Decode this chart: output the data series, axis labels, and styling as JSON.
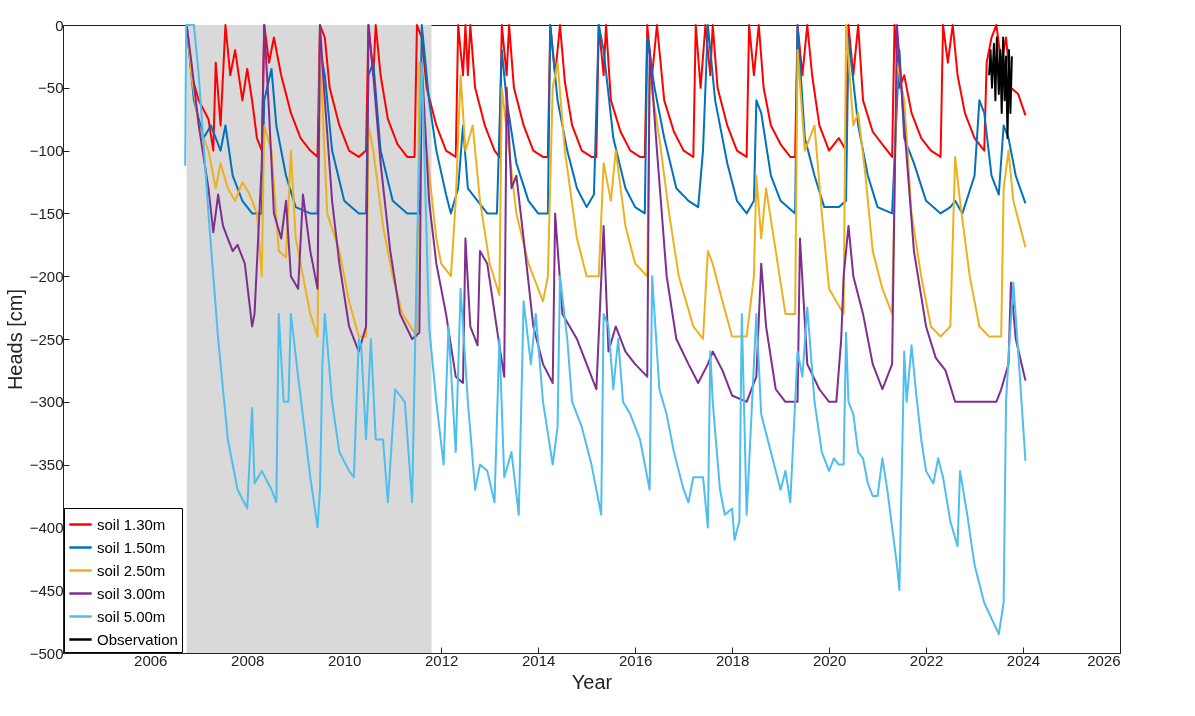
{
  "chart_data": {
    "type": "line",
    "xlabel": "Year",
    "ylabel": "Heads [cm]",
    "xlim": [
      2004.2,
      2026
    ],
    "ylim": [
      -500,
      0
    ],
    "xticks": [
      2006,
      2008,
      2010,
      2012,
      2014,
      2016,
      2018,
      2020,
      2022,
      2024,
      2026
    ],
    "yticks": [
      -500,
      -450,
      -400,
      -350,
      -300,
      -250,
      -200,
      -150,
      -100,
      -50,
      0
    ],
    "grid": false,
    "legend": "bottom left",
    "line_style": "solid",
    "bands": [
      {
        "axis": "x",
        "from": 2006.75,
        "to": 2011.8,
        "color": "#d9d9d9"
      }
    ],
    "series": [
      {
        "name": "soil 1.30m",
        "color": "#ff0000",
        "x": [
          2006.75,
          2006.85,
          2007.0,
          2007.2,
          2007.3,
          2007.35,
          2007.45,
          2007.55,
          2007.65,
          2007.75,
          2007.9,
          2008.0,
          2008.1,
          2008.2,
          2008.3,
          2008.35,
          2008.45,
          2008.55,
          2008.7,
          2008.9,
          2009.1,
          2009.3,
          2009.45,
          2009.5,
          2009.6,
          2009.7,
          2009.9,
          2010.1,
          2010.3,
          2010.45,
          2010.5,
          2010.6,
          2010.65,
          2010.75,
          2010.9,
          2011.1,
          2011.3,
          2011.45,
          2011.5,
          2011.6,
          2011.7,
          2011.9,
          2012.1,
          2012.3,
          2012.35,
          2012.45,
          2012.5,
          2012.55,
          2012.6,
          2012.7,
          2012.9,
          2013.1,
          2013.2,
          2013.25,
          2013.35,
          2013.4,
          2013.5,
          2013.7,
          2013.9,
          2014.1,
          2014.2,
          2014.25,
          2014.35,
          2014.45,
          2014.55,
          2014.7,
          2014.9,
          2015.1,
          2015.2,
          2015.25,
          2015.35,
          2015.4,
          2015.5,
          2015.7,
          2015.9,
          2016.1,
          2016.2,
          2016.25,
          2016.35,
          2016.45,
          2016.6,
          2016.8,
          2017.0,
          2017.2,
          2017.25,
          2017.35,
          2017.45,
          2017.55,
          2017.6,
          2017.7,
          2017.9,
          2018.1,
          2018.3,
          2018.35,
          2018.45,
          2018.55,
          2018.65,
          2018.8,
          2019.0,
          2019.2,
          2019.3,
          2019.35,
          2019.45,
          2019.55,
          2019.65,
          2019.8,
          2020.0,
          2020.2,
          2020.35,
          2020.4,
          2020.5,
          2020.6,
          2020.7,
          2020.9,
          2021.1,
          2021.3,
          2021.35,
          2021.45,
          2021.55,
          2021.7,
          2021.9,
          2022.1,
          2022.3,
          2022.35,
          2022.45,
          2022.55,
          2022.65,
          2022.8,
          2023.0,
          2023.2,
          2023.25,
          2023.35,
          2023.45,
          2023.55,
          2023.65,
          2023.75,
          2023.9,
          2024.05
        ],
        "values": [
          0,
          -40,
          -60,
          -75,
          -100,
          -30,
          -80,
          0,
          -40,
          -20,
          -60,
          -35,
          -60,
          -90,
          -100,
          0,
          -30,
          -10,
          -40,
          -70,
          -90,
          -100,
          -105,
          0,
          -10,
          -50,
          -80,
          -100,
          -105,
          -100,
          0,
          -40,
          0,
          -40,
          -75,
          -95,
          -105,
          -105,
          0,
          -10,
          -50,
          -80,
          -100,
          -105,
          0,
          -40,
          0,
          -40,
          0,
          -50,
          -80,
          -100,
          -105,
          0,
          -40,
          0,
          -50,
          -80,
          -100,
          -105,
          -105,
          0,
          -40,
          0,
          -45,
          -80,
          -100,
          -105,
          -105,
          0,
          -40,
          0,
          -60,
          -85,
          -100,
          -105,
          -105,
          0,
          -40,
          0,
          -60,
          -85,
          -100,
          -105,
          0,
          -50,
          0,
          -40,
          0,
          -50,
          -80,
          -100,
          -105,
          0,
          -40,
          0,
          -50,
          -80,
          -95,
          -105,
          -105,
          0,
          -40,
          0,
          -40,
          -80,
          -100,
          -90,
          -100,
          0,
          -40,
          0,
          -60,
          -85,
          -95,
          -105,
          0,
          -50,
          -40,
          -70,
          -90,
          -100,
          -105,
          0,
          -30,
          0,
          -40,
          -70,
          -90,
          -100,
          -30,
          -10,
          0,
          -30,
          -10,
          -50,
          -55,
          -72
        ]
      },
      {
        "name": "soil 1.50m",
        "color": "#0072bd",
        "x": [
          2006.75,
          2006.9,
          2007.1,
          2007.25,
          2007.45,
          2007.55,
          2007.7,
          2007.9,
          2008.1,
          2008.3,
          2008.35,
          2008.5,
          2008.6,
          2008.8,
          2009.0,
          2009.3,
          2009.45,
          2009.5,
          2009.6,
          2009.75,
          2010.0,
          2010.3,
          2010.45,
          2010.5,
          2010.6,
          2010.75,
          2011.0,
          2011.3,
          2011.55,
          2011.6,
          2011.75,
          2011.9,
          2012.1,
          2012.2,
          2012.35,
          2012.45,
          2012.55,
          2012.75,
          2012.95,
          2013.15,
          2013.25,
          2013.35,
          2013.55,
          2013.8,
          2014.0,
          2014.2,
          2014.25,
          2014.4,
          2014.6,
          2014.8,
          2015.0,
          2015.15,
          2015.25,
          2015.35,
          2015.55,
          2015.8,
          2016.0,
          2016.2,
          2016.25,
          2016.4,
          2016.6,
          2016.85,
          2017.1,
          2017.3,
          2017.4,
          2017.5,
          2017.65,
          2017.9,
          2018.1,
          2018.3,
          2018.45,
          2018.5,
          2018.6,
          2018.8,
          2019.0,
          2019.3,
          2019.35,
          2019.5,
          2019.7,
          2019.9,
          2020.2,
          2020.35,
          2020.4,
          2020.6,
          2020.8,
          2021.0,
          2021.3,
          2021.45,
          2021.55,
          2021.75,
          2022.0,
          2022.3,
          2022.5,
          2022.6,
          2022.75,
          2023.0,
          2023.1,
          2023.2,
          2023.35,
          2023.5,
          2023.6,
          2023.7,
          2023.85,
          2024.05
        ],
        "values": [
          0,
          -60,
          -90,
          -80,
          -100,
          -80,
          -120,
          -140,
          -150,
          -150,
          -60,
          -35,
          -80,
          -120,
          -145,
          -150,
          -150,
          -20,
          -40,
          -100,
          -140,
          -150,
          -150,
          -40,
          -30,
          -100,
          -140,
          -150,
          -150,
          0,
          -60,
          -100,
          -135,
          -150,
          -130,
          -80,
          -130,
          -140,
          -150,
          -150,
          -20,
          -60,
          -110,
          -140,
          -150,
          -150,
          0,
          -60,
          -100,
          -130,
          -145,
          -135,
          0,
          -20,
          -90,
          -130,
          -145,
          -150,
          -10,
          -50,
          -90,
          -130,
          -140,
          -145,
          -100,
          0,
          -60,
          -110,
          -140,
          -150,
          -140,
          -60,
          -70,
          -120,
          -140,
          -150,
          0,
          -90,
          -120,
          -145,
          -145,
          -140,
          -10,
          -80,
          -120,
          -145,
          -150,
          -20,
          -90,
          -110,
          -140,
          -150,
          -145,
          -140,
          -150,
          -120,
          -60,
          -70,
          -120,
          -135,
          -80,
          -90,
          -120,
          -142
        ]
      },
      {
        "name": "soil 2.50m",
        "color": "#edb120",
        "x": [
          2006.75,
          2006.85,
          2007.0,
          2007.2,
          2007.35,
          2007.45,
          2007.6,
          2007.75,
          2007.9,
          2008.05,
          2008.2,
          2008.3,
          2008.35,
          2008.5,
          2008.65,
          2008.8,
          2008.9,
          2009.0,
          2009.15,
          2009.3,
          2009.45,
          2009.5,
          2009.65,
          2009.9,
          2010.1,
          2010.3,
          2010.45,
          2010.5,
          2010.6,
          2010.8,
          2011.0,
          2011.2,
          2011.5,
          2011.55,
          2011.7,
          2011.9,
          2012.0,
          2012.2,
          2012.3,
          2012.4,
          2012.5,
          2012.65,
          2012.8,
          2013.0,
          2013.2,
          2013.25,
          2013.4,
          2013.55,
          2013.8,
          2014.1,
          2014.2,
          2014.3,
          2014.4,
          2014.55,
          2014.8,
          2015.0,
          2015.25,
          2015.35,
          2015.5,
          2015.6,
          2015.8,
          2016.0,
          2016.25,
          2016.3,
          2016.5,
          2016.7,
          2016.9,
          2017.2,
          2017.4,
          2017.5,
          2017.6,
          2017.8,
          2018.0,
          2018.3,
          2018.45,
          2018.5,
          2018.6,
          2018.7,
          2018.9,
          2019.1,
          2019.3,
          2019.35,
          2019.5,
          2019.7,
          2019.85,
          2020.0,
          2020.3,
          2020.35,
          2020.5,
          2020.6,
          2020.75,
          2020.9,
          2021.1,
          2021.3,
          2021.4,
          2021.55,
          2021.7,
          2021.9,
          2022.1,
          2022.3,
          2022.5,
          2022.6,
          2022.7,
          2022.9,
          2023.1,
          2023.3,
          2023.55,
          2023.6,
          2023.7,
          2023.8,
          2024.05
        ],
        "values": [
          0,
          -40,
          -80,
          -100,
          -130,
          -110,
          -130,
          -140,
          -125,
          -135,
          -150,
          -200,
          -80,
          -100,
          -180,
          -185,
          -100,
          -170,
          -200,
          -230,
          -248,
          -20,
          -150,
          -180,
          -220,
          -248,
          -248,
          -80,
          -100,
          -160,
          -200,
          -230,
          -248,
          -30,
          -100,
          -170,
          -190,
          -200,
          -140,
          -40,
          -100,
          -80,
          -140,
          -190,
          -215,
          -50,
          -100,
          -150,
          -190,
          -220,
          -200,
          -50,
          -30,
          -100,
          -170,
          -200,
          -200,
          -110,
          -140,
          -100,
          -160,
          -190,
          -200,
          -40,
          -90,
          -150,
          -200,
          -240,
          -250,
          -180,
          -190,
          -220,
          -248,
          -248,
          -200,
          -120,
          -170,
          -130,
          -180,
          -230,
          -230,
          -20,
          -100,
          -80,
          -150,
          -210,
          -230,
          0,
          -80,
          -70,
          -120,
          -180,
          -210,
          -230,
          -30,
          -60,
          -150,
          -200,
          -240,
          -248,
          -240,
          -105,
          -140,
          -200,
          -240,
          -248,
          -248,
          -130,
          -100,
          -140,
          -177
        ]
      },
      {
        "name": "soil 3.00m",
        "color": "#7e2f8e",
        "x": [
          2006.75,
          2006.85,
          2007.0,
          2007.2,
          2007.3,
          2007.4,
          2007.5,
          2007.6,
          2007.7,
          2007.8,
          2007.95,
          2008.1,
          2008.15,
          2008.3,
          2008.35,
          2008.45,
          2008.55,
          2008.7,
          2008.8,
          2008.9,
          2009.05,
          2009.15,
          2009.3,
          2009.45,
          2009.5,
          2009.6,
          2009.75,
          2009.9,
          2010.1,
          2010.3,
          2010.45,
          2010.5,
          2010.6,
          2010.75,
          2010.95,
          2011.15,
          2011.4,
          2011.55,
          2011.6,
          2011.75,
          2011.9,
          2012.1,
          2012.3,
          2012.45,
          2012.5,
          2012.6,
          2012.75,
          2012.8,
          2012.95,
          2013.2,
          2013.3,
          2013.35,
          2013.45,
          2013.55,
          2013.7,
          2013.9,
          2014.1,
          2014.3,
          2014.35,
          2014.5,
          2014.65,
          2014.8,
          2015.0,
          2015.2,
          2015.35,
          2015.45,
          2015.6,
          2015.8,
          2016.0,
          2016.25,
          2016.3,
          2016.45,
          2016.65,
          2016.85,
          2017.1,
          2017.3,
          2017.5,
          2017.6,
          2017.8,
          2018.0,
          2018.3,
          2018.5,
          2018.6,
          2018.7,
          2018.9,
          2019.1,
          2019.35,
          2019.4,
          2019.55,
          2019.8,
          2020.0,
          2020.15,
          2020.25,
          2020.3,
          2020.4,
          2020.5,
          2020.7,
          2020.9,
          2021.1,
          2021.3,
          2021.4,
          2021.55,
          2021.75,
          2022.0,
          2022.2,
          2022.4,
          2022.6,
          2023.0,
          2023.45,
          2023.55,
          2023.7,
          2023.75,
          2023.85,
          2024.05
        ],
        "values": [
          0,
          -30,
          -80,
          -130,
          -165,
          -135,
          -160,
          -170,
          -180,
          -175,
          -190,
          -240,
          -230,
          -110,
          0,
          -70,
          -150,
          -170,
          -140,
          -200,
          -210,
          -135,
          -180,
          -210,
          0,
          -60,
          -140,
          -190,
          -240,
          -260,
          -240,
          0,
          -40,
          -110,
          -180,
          -230,
          -250,
          -245,
          -30,
          -140,
          -190,
          -230,
          -280,
          -285,
          -170,
          -240,
          -255,
          -180,
          -190,
          -255,
          -280,
          -50,
          -130,
          -120,
          -170,
          -240,
          -270,
          -285,
          -150,
          -230,
          -240,
          -250,
          -270,
          -290,
          -160,
          -260,
          -240,
          -260,
          -270,
          -280,
          -20,
          -100,
          -200,
          -250,
          -270,
          -285,
          -270,
          -260,
          -275,
          -295,
          -300,
          -280,
          -190,
          -240,
          -290,
          -300,
          -300,
          -170,
          -270,
          -290,
          -300,
          -300,
          -250,
          -200,
          -160,
          -200,
          -230,
          -270,
          -290,
          -270,
          0,
          -80,
          -180,
          -240,
          -265,
          -275,
          -300,
          -300,
          -300,
          -290,
          -270,
          -205,
          -250,
          -283
        ]
      },
      {
        "name": "soil 5.00m",
        "color": "#4dbeee",
        "x": [
          2006.72,
          2006.74,
          2006.9,
          2007.0,
          2007.2,
          2007.4,
          2007.6,
          2007.8,
          2008.0,
          2008.1,
          2008.15,
          2008.3,
          2008.5,
          2008.6,
          2008.65,
          2008.75,
          2008.85,
          2008.9,
          2009.05,
          2009.3,
          2009.45,
          2009.5,
          2009.55,
          2009.6,
          2009.75,
          2009.9,
          2010.1,
          2010.2,
          2010.3,
          2010.35,
          2010.45,
          2010.55,
          2010.65,
          2010.8,
          2010.9,
          2011.05,
          2011.25,
          2011.4,
          2011.5,
          2011.6,
          2011.75,
          2011.9,
          2012.05,
          2012.15,
          2012.3,
          2012.4,
          2012.55,
          2012.7,
          2012.8,
          2012.95,
          2013.1,
          2013.2,
          2013.3,
          2013.45,
          2013.6,
          2013.7,
          2013.85,
          2013.95,
          2014.1,
          2014.3,
          2014.4,
          2014.45,
          2014.6,
          2014.7,
          2014.9,
          2015.1,
          2015.3,
          2015.35,
          2015.45,
          2015.55,
          2015.65,
          2015.75,
          2015.9,
          2016.1,
          2016.3,
          2016.35,
          2016.5,
          2016.65,
          2016.8,
          2017.0,
          2017.1,
          2017.2,
          2017.4,
          2017.5,
          2017.55,
          2017.6,
          2017.75,
          2017.85,
          2018.0,
          2018.05,
          2018.15,
          2018.2,
          2018.3,
          2018.4,
          2018.5,
          2018.6,
          2018.8,
          2019.0,
          2019.1,
          2019.2,
          2019.35,
          2019.45,
          2019.55,
          2019.7,
          2019.85,
          2020.0,
          2020.1,
          2020.2,
          2020.3,
          2020.35,
          2020.4,
          2020.5,
          2020.6,
          2020.7,
          2020.8,
          2020.9,
          2021.0,
          2021.1,
          2021.2,
          2021.4,
          2021.45,
          2021.55,
          2021.6,
          2021.7,
          2021.8,
          2021.9,
          2022.0,
          2022.15,
          2022.25,
          2022.35,
          2022.5,
          2022.65,
          2022.7,
          2022.85,
          2023.0,
          2023.2,
          2023.5,
          2023.6,
          2023.65,
          2023.7,
          2023.8,
          2023.9,
          2024.05
        ],
        "values": [
          -112,
          0,
          0,
          -40,
          -150,
          -250,
          -330,
          -370,
          -385,
          -305,
          -365,
          -355,
          -370,
          -380,
          -230,
          -300,
          -300,
          -230,
          -280,
          -360,
          -400,
          -370,
          -270,
          -230,
          -300,
          -340,
          -355,
          -360,
          -250,
          -255,
          -330,
          -250,
          -330,
          -330,
          -380,
          -290,
          -300,
          -380,
          -180,
          -30,
          -240,
          -300,
          -350,
          -240,
          -340,
          -210,
          -300,
          -370,
          -350,
          -355,
          -380,
          -250,
          -360,
          -340,
          -390,
          -220,
          -270,
          -230,
          -300,
          -350,
          -320,
          -200,
          -250,
          -300,
          -320,
          -350,
          -390,
          -230,
          -240,
          -290,
          -250,
          -300,
          -310,
          -330,
          -370,
          -200,
          -290,
          -310,
          -340,
          -370,
          -380,
          -360,
          -360,
          -400,
          -260,
          -300,
          -370,
          -390,
          -385,
          -410,
          -395,
          -230,
          -390,
          -310,
          -230,
          -310,
          -340,
          -370,
          -355,
          -380,
          -260,
          -280,
          -225,
          -300,
          -340,
          -355,
          -345,
          -350,
          -350,
          -245,
          -300,
          -310,
          -340,
          -345,
          -365,
          -375,
          -375,
          -345,
          -370,
          -430,
          -450,
          -260,
          -300,
          -255,
          -295,
          -330,
          -355,
          -365,
          -345,
          -360,
          -395,
          -415,
          -355,
          -390,
          -430,
          -460,
          -485,
          -460,
          -300,
          -265,
          -205,
          -260,
          -347
        ]
      },
      {
        "name": "Observation",
        "color": "#000000",
        "x": [
          2023.3,
          2023.33,
          2023.36,
          2023.4,
          2023.43,
          2023.46,
          2023.5,
          2023.53,
          2023.56,
          2023.59,
          2023.62,
          2023.65,
          2023.68,
          2023.71,
          2023.74,
          2023.77
        ],
        "values": [
          -40,
          -20,
          -50,
          -15,
          -60,
          -10,
          -55,
          -20,
          -70,
          -10,
          -60,
          -25,
          -90,
          -20,
          -70,
          -25
        ]
      }
    ]
  }
}
